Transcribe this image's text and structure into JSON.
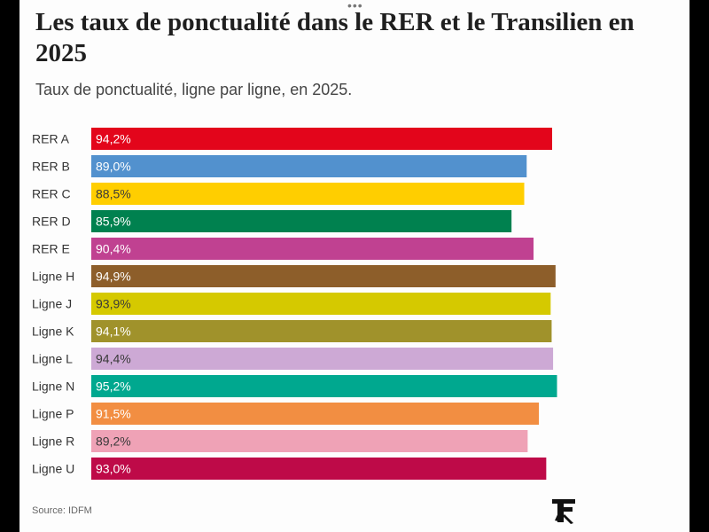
{
  "header": {
    "title": "Les taux de ponctualité dans le RER et le Transilien en 2025",
    "subtitle": "Taux de ponctualité, ligne par ligne, en 2025.",
    "more_icon": "more-dots-icon"
  },
  "footer": {
    "source": "Source: IDFM",
    "logo_icon": "le-figaro-logo"
  },
  "chart_data": {
    "type": "bar",
    "orientation": "horizontal",
    "title": "Les taux de ponctualité dans le RER et le Transilien en 2025",
    "subtitle": "Taux de ponctualité, ligne par ligne, en 2025.",
    "xlabel": "",
    "ylabel": "",
    "xlim": [
      0,
      100
    ],
    "grid": false,
    "categories": [
      "RER A",
      "RER B",
      "RER C",
      "RER D",
      "RER E",
      "Ligne H",
      "Ligne J",
      "Ligne K",
      "Ligne L",
      "Ligne N",
      "Ligne P",
      "Ligne R",
      "Ligne U"
    ],
    "values": [
      94.2,
      89.0,
      88.5,
      85.9,
      90.4,
      94.9,
      93.9,
      94.1,
      94.4,
      95.2,
      91.5,
      89.2,
      93.0
    ],
    "value_labels": [
      "94,2%",
      "89,0%",
      "88,5%",
      "85,9%",
      "90,4%",
      "94,9%",
      "93,9%",
      "94,1%",
      "94,4%",
      "95,2%",
      "91,5%",
      "89,2%",
      "93,0%"
    ],
    "colors": [
      "#e3051b",
      "#5291ce",
      "#ffce00",
      "#00814f",
      "#c04191",
      "#8d5e2a",
      "#d5c900",
      "#a0922b",
      "#cda9d5",
      "#00a88f",
      "#f28e42",
      "#efa2b6",
      "#be0a48"
    ],
    "label_colors": [
      "#ffffff",
      "#ffffff",
      "#3a3a3a",
      "#ffffff",
      "#ffffff",
      "#ffffff",
      "#3a3a3a",
      "#ffffff",
      "#3a3a3a",
      "#ffffff",
      "#ffffff",
      "#3a3a3a",
      "#ffffff"
    ],
    "source": "Source: IDFM"
  }
}
